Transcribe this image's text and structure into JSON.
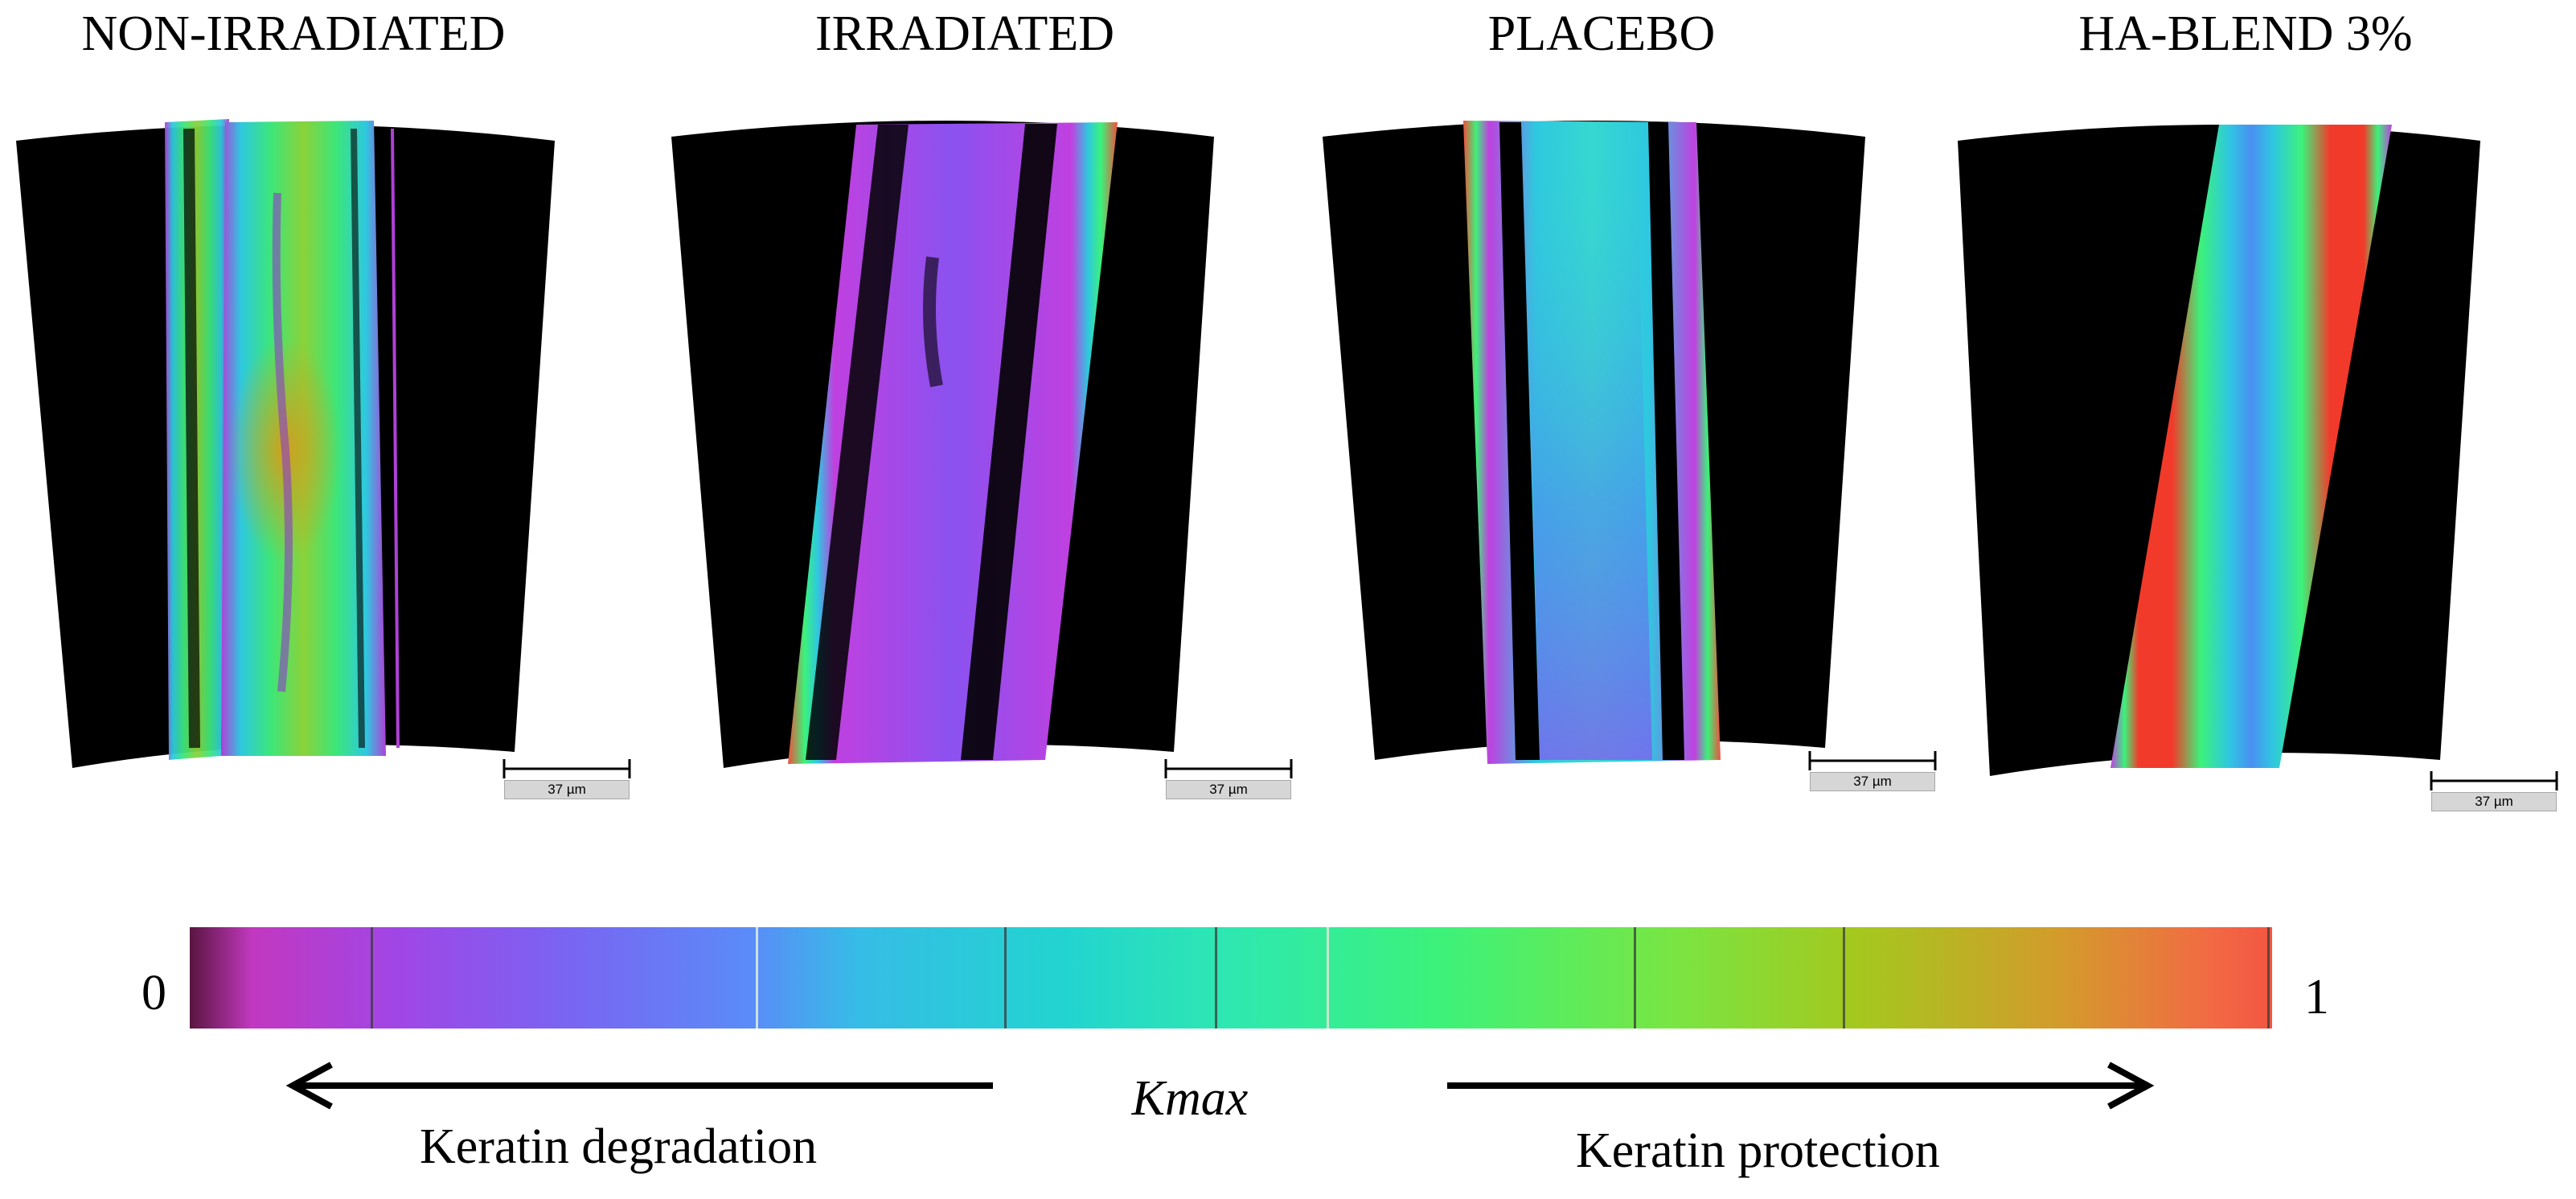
{
  "panels": [
    {
      "title": "NON-IRRADIATED",
      "scale_bar": "37 µm"
    },
    {
      "title": "IRRADIATED",
      "scale_bar": "37 µm"
    },
    {
      "title": "PLACEBO",
      "scale_bar": "37 µm"
    },
    {
      "title": "HA-BLEND 3%",
      "scale_bar": "37 µm"
    }
  ],
  "colorbar": {
    "min_label": "0",
    "max_label": "1",
    "variable": "Kmax",
    "left_caption": "Keratin degradation",
    "right_caption": "Keratin protection"
  },
  "colors": {
    "background": "#ffffff",
    "image_background": "#000000"
  }
}
